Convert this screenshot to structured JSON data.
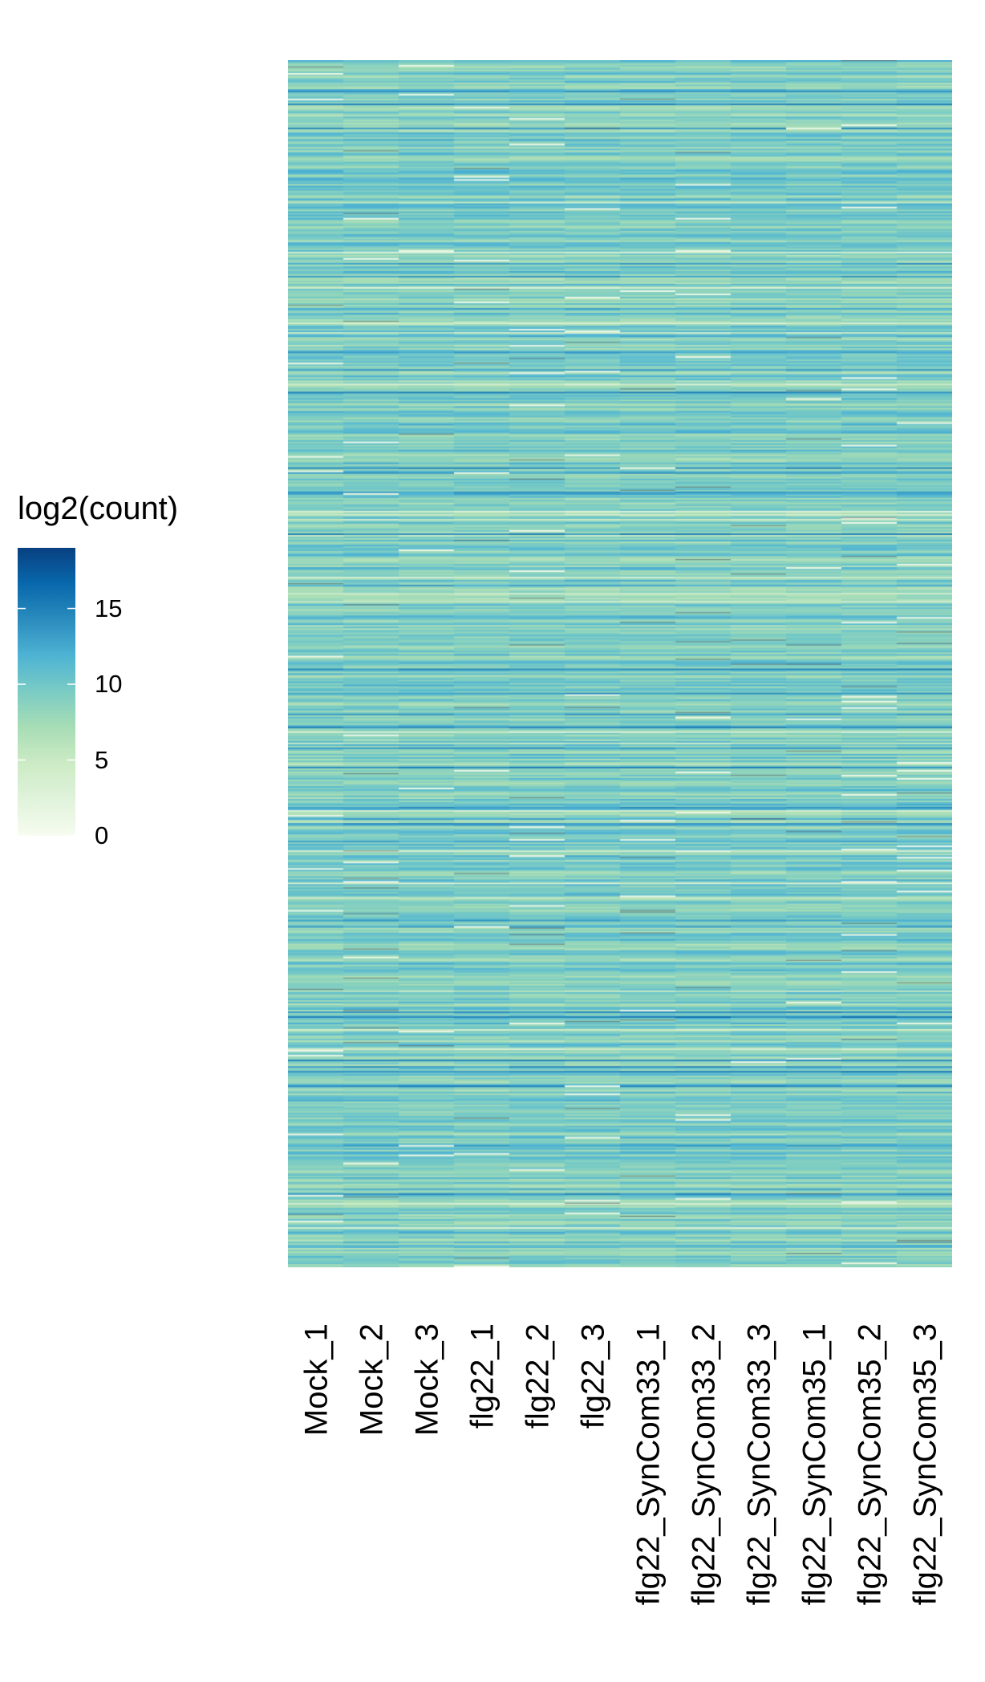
{
  "chart_data": {
    "type": "heatmap",
    "title": "",
    "columns": [
      "Mock_1",
      "Mock_2",
      "Mock_3",
      "flg22_1",
      "flg22_2",
      "flg22_3",
      "flg22_SynCom33_1",
      "flg22_SynCom33_2",
      "flg22_SynCom33_3",
      "flg22_SynCom35_1",
      "flg22_SynCom35_2",
      "flg22_SynCom35_3"
    ],
    "legend": {
      "title": "log2(count)",
      "ticks": [
        0,
        5,
        10,
        15
      ],
      "range": [
        0,
        19
      ],
      "colors": [
        "#f7fcf0",
        "#e0f3db",
        "#ccebc5",
        "#a8ddb5",
        "#7bccc4",
        "#4eb3d3",
        "#2b8cbe",
        "#0868ac",
        "#084081"
      ]
    },
    "grid": false,
    "legend_position": "left"
  }
}
